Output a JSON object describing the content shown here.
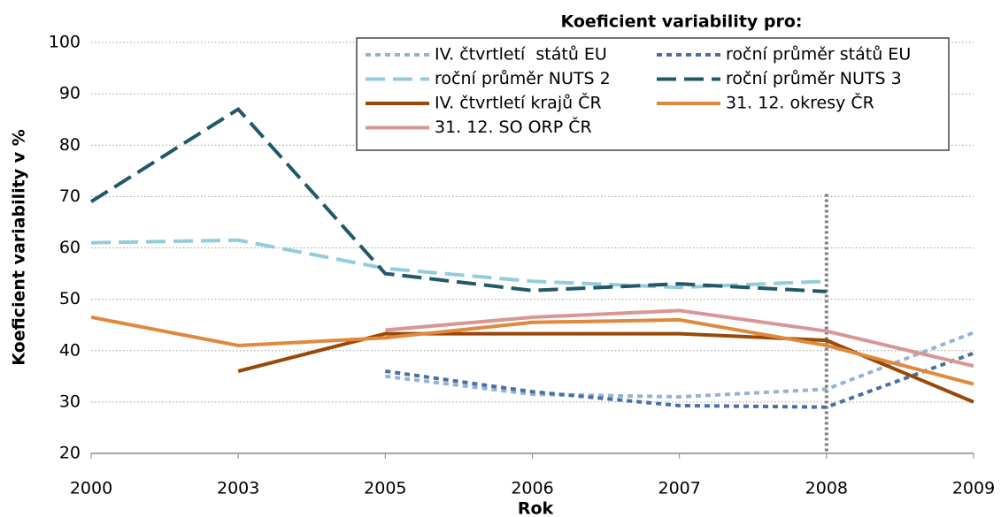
{
  "chart_data": {
    "type": "line",
    "legend_title": "Koeficient variability pro:",
    "x_label": "Rok",
    "y_label": "Koeficient variability v %",
    "categories": [
      "2000",
      "2003",
      "2005",
      "2006",
      "2007",
      "2008",
      "2009"
    ],
    "ylim": [
      20,
      100
    ],
    "yticks": [
      20,
      30,
      40,
      50,
      60,
      70,
      80,
      90,
      100
    ],
    "grid": true,
    "legend": "top-right",
    "reference_line": {
      "category": "2008",
      "top": 70.5,
      "color": "#808080"
    },
    "series": [
      {
        "name": "IV. čtvrtletí  států EU",
        "color": "#95b3d7",
        "dash": "dotted",
        "values": [
          null,
          null,
          35,
          31.5,
          31,
          32.5,
          43.5
        ]
      },
      {
        "name": "roční průměr států EU",
        "color": "#4a6fa5",
        "dash": "dotted",
        "values": [
          null,
          null,
          36,
          32,
          29.3,
          29,
          39.5
        ]
      },
      {
        "name": "roční průměr NUTS 2",
        "color": "#93cddd",
        "dash": "long",
        "values": [
          61,
          61.5,
          56,
          53.5,
          52.3,
          53.5,
          null
        ]
      },
      {
        "name": "roční průměr NUTS 3",
        "color": "#215968",
        "dash": "long",
        "values": [
          69,
          87,
          55,
          51.7,
          53,
          51.5,
          null
        ]
      },
      {
        "name": "IV. čtvrtletí krajů ČR",
        "color": "#984807",
        "dash": "solid",
        "values": [
          null,
          36,
          43.3,
          43.3,
          43.3,
          42,
          30
        ]
      },
      {
        "name": "31. 12. okresy ČR",
        "color": "#e0893c",
        "dash": "solid",
        "values": [
          46.5,
          41,
          42.5,
          45.5,
          46,
          41,
          33.5
        ]
      },
      {
        "name": "31. 12. SO ORP ČR",
        "color": "#d99694",
        "dash": "solid",
        "values": [
          null,
          null,
          44,
          46.5,
          47.8,
          43.8,
          37
        ]
      }
    ]
  }
}
